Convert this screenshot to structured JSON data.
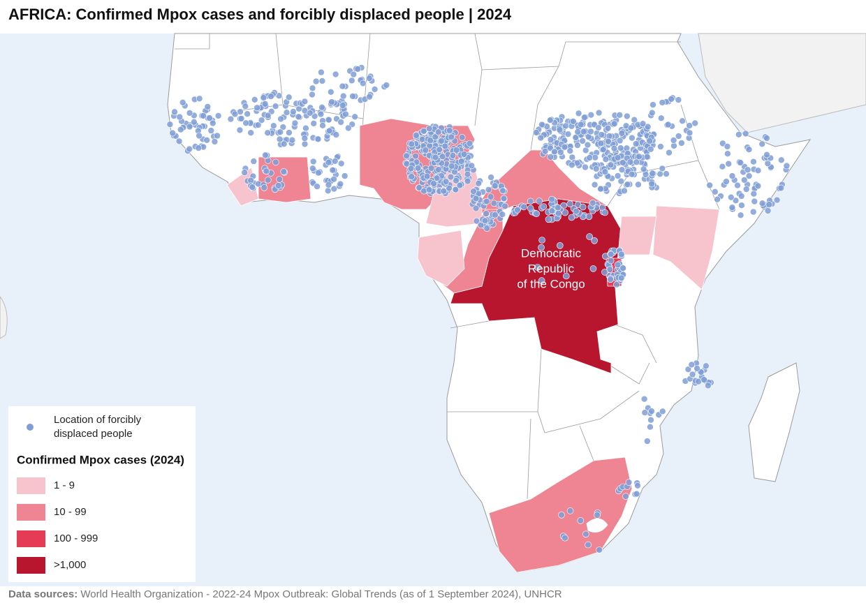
{
  "title": "AFRICA: Confirmed Mpox cases and forcibly displaced people | 2024",
  "map_label": [
    "Democratic",
    "Republic",
    "of the Congo"
  ],
  "legend": {
    "point_label": [
      "Location of forcibly",
      "displaced people"
    ],
    "point_color": "#7f9ed6",
    "title": "Confirmed Mpox cases (2024)",
    "classes": [
      {
        "label": "1 - 9",
        "color": "#f7c3cc"
      },
      {
        "label": "10 - 99",
        "color": "#ef8593"
      },
      {
        "label": "100 - 999",
        "color": "#e63b57"
      },
      {
        "label": ">1,000",
        "color": "#b8152f"
      }
    ]
  },
  "source": {
    "label": "Data sources:",
    "text": "World Health Organization - 2022-24 Mpox Outbreak: Global Trends (as of 1 September 2024), UNHCR"
  }
}
